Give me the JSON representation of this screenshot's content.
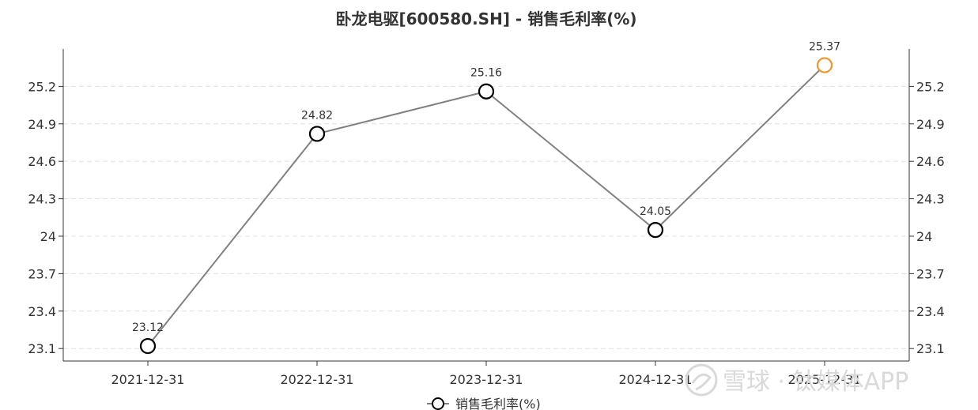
{
  "chart_data": {
    "type": "line",
    "title": "卧龙电驱[600580.SH] - 销售毛利率(%)",
    "categories": [
      "2021-12-31",
      "2022-12-31",
      "2023-12-31",
      "2024-12-31",
      "2025-12-31"
    ],
    "series": [
      {
        "name": "销售毛利率(%)",
        "values": [
          23.12,
          24.82,
          25.16,
          24.05,
          25.37
        ],
        "labels": [
          "23.12",
          "24.82",
          "25.16",
          "24.05",
          "25.37"
        ],
        "color": "#808080",
        "marker_color": "#000000",
        "highlight_color": "#f0962d"
      }
    ],
    "yticks": [
      23.1,
      23.4,
      23.7,
      24,
      24.3,
      24.6,
      24.9,
      25.2
    ],
    "ytick_labels": [
      "23.1",
      "23.4",
      "23.7",
      "24",
      "24.3",
      "24.6",
      "24.9",
      "25.2"
    ],
    "ylim": [
      23.0,
      25.5
    ],
    "grid": true,
    "legend": "bottom-center"
  },
  "watermark": {
    "text": "雪球 · 钛媒体APP",
    "icon": "snowball-logo-icon"
  }
}
